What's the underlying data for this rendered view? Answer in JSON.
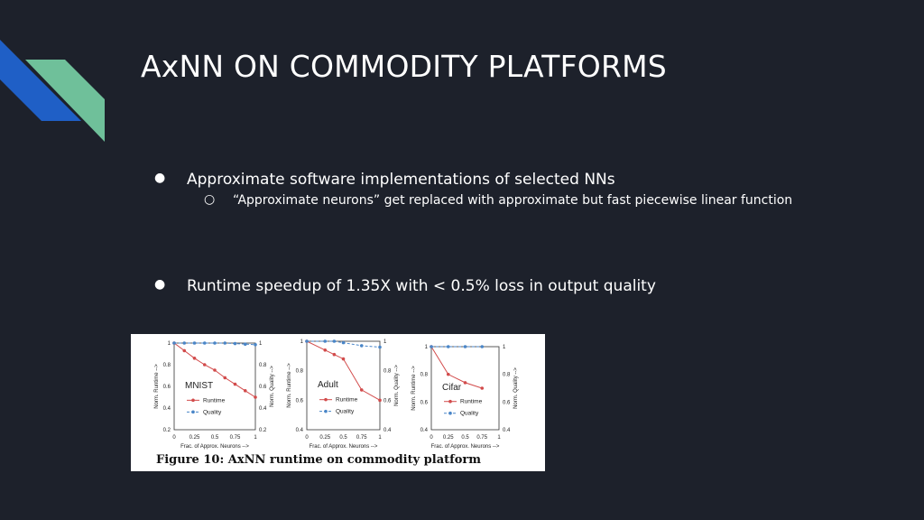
{
  "slide": {
    "title": "AxNN ON COMMODITY PLATFORMS",
    "bullets": [
      {
        "text": "Approximate software implementations of selected NNs",
        "sub": [
          "“Approximate neurons” get replaced with approximate but fast piecewise linear function"
        ]
      },
      {
        "text": "Runtime speedup of 1.35X with < 0.5% loss in output quality"
      }
    ],
    "bullet_glyph": "●",
    "sub_glyph": "○",
    "figure_caption": "Figure 10: AxNN runtime on commodity platform"
  },
  "colors": {
    "background": "#1d212b",
    "accent_blue": "#1f5fc6",
    "accent_green": "#6fc09a",
    "runtime": "#d24b4b",
    "quality": "#4a86c8"
  },
  "chart_data": [
    {
      "type": "line",
      "title": "MNIST",
      "x": [
        0,
        0.25,
        0.5,
        0.75,
        1
      ],
      "xticks": [
        "0",
        "0.25",
        "0.5",
        "0.75",
        "1"
      ],
      "xlabel": "Frac. of Approx. Neurons -->",
      "ylabel": "Norm. Runtime -->",
      "y2label": "Norm. Quality -->",
      "ylim": [
        0.2,
        1
      ],
      "yticks": [
        "1",
        "0.8",
        "0.6",
        "0.4",
        "0.2"
      ],
      "y2ticks": [
        "1",
        "0.8",
        "0.6",
        "0.4",
        "0.2"
      ],
      "legend_position": "bottom-left",
      "series": [
        {
          "name": "Runtime",
          "x": [
            0,
            0.125,
            0.25,
            0.375,
            0.5,
            0.625,
            0.75,
            0.875,
            1
          ],
          "values": [
            1.0,
            0.93,
            0.86,
            0.8,
            0.75,
            0.68,
            0.62,
            0.56,
            0.5
          ]
        },
        {
          "name": "Quality",
          "x": [
            0,
            0.125,
            0.25,
            0.375,
            0.5,
            0.625,
            0.75,
            0.875,
            1
          ],
          "values": [
            1.0,
            1.0,
            1.0,
            1.0,
            1.0,
            1.0,
            0.995,
            0.99,
            0.985
          ]
        }
      ]
    },
    {
      "type": "line",
      "title": "Adult",
      "x": [
        0,
        0.25,
        0.5,
        0.75,
        1
      ],
      "xticks": [
        "0",
        "0.25",
        "0.5",
        "0.75",
        "1"
      ],
      "xlabel": "Frac. of Approx. Neurons -->",
      "ylabel": "Norm. Runtime -->",
      "y2label": "Norm. Quality -->",
      "ylim": [
        0.4,
        1
      ],
      "yticks": [
        "1",
        "0.8",
        "0.6",
        "0.4"
      ],
      "y2ticks": [
        "1",
        "0.8",
        "0.6",
        "0.4"
      ],
      "legend_position": "bottom-left",
      "series": [
        {
          "name": "Runtime",
          "x": [
            0,
            0.25,
            0.375,
            0.5,
            0.75,
            1
          ],
          "values": [
            1.0,
            0.94,
            0.91,
            0.88,
            0.67,
            0.6
          ]
        },
        {
          "name": "Quality",
          "x": [
            0,
            0.25,
            0.375,
            0.5,
            0.75,
            1
          ],
          "values": [
            1.0,
            1.0,
            1.0,
            0.99,
            0.97,
            0.96
          ]
        }
      ]
    },
    {
      "type": "line",
      "title": "Cifar",
      "x": [
        0,
        0.25,
        0.5,
        0.75
      ],
      "xticks": [
        "0",
        "0.25",
        "0.5",
        "0.75",
        "1"
      ],
      "xlabel": "Frac. of Approx. Neurons -->",
      "ylabel": "Norm. Runtime -->",
      "y2label": "Norm. Quality -->",
      "ylim": [
        0.4,
        1
      ],
      "yticks": [
        "1",
        "0.8",
        "0.6",
        "0.4"
      ],
      "y2ticks": [
        "1",
        "0.8",
        "0.6",
        "0.4"
      ],
      "legend_position": "bottom-left",
      "series": [
        {
          "name": "Runtime",
          "x": [
            0,
            0.25,
            0.5,
            0.75
          ],
          "values": [
            1.0,
            0.8,
            0.74,
            0.7
          ]
        },
        {
          "name": "Quality",
          "x": [
            0,
            0.25,
            0.5,
            0.75
          ],
          "values": [
            1.0,
            1.0,
            1.0,
            1.0
          ]
        }
      ]
    }
  ]
}
